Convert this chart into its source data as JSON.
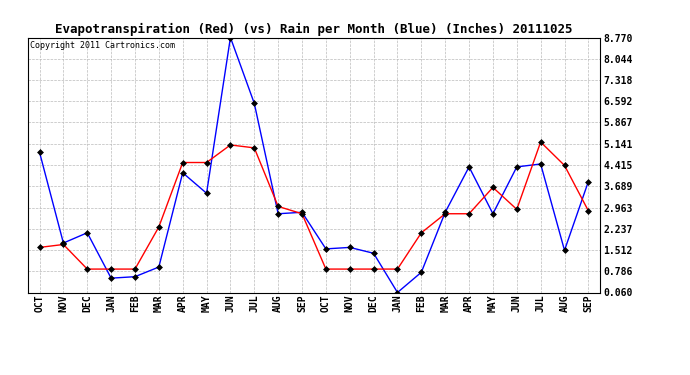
{
  "title": "Evapotranspiration (Red) (vs) Rain per Month (Blue) (Inches) 20111025",
  "copyright": "Copyright 2011 Cartronics.com",
  "months": [
    "OCT",
    "NOV",
    "DEC",
    "JAN",
    "FEB",
    "MAR",
    "APR",
    "MAY",
    "JUN",
    "JUL",
    "AUG",
    "SEP",
    "OCT",
    "NOV",
    "DEC",
    "JAN",
    "FEB",
    "MAR",
    "APR",
    "MAY",
    "JUN",
    "JUL",
    "AUG",
    "SEP"
  ],
  "rain_blue": [
    4.85,
    1.75,
    2.1,
    0.55,
    0.6,
    0.93,
    4.15,
    3.45,
    8.77,
    6.52,
    2.75,
    2.8,
    1.55,
    1.6,
    1.4,
    0.06,
    0.75,
    2.8,
    4.35,
    2.75,
    4.35,
    4.45,
    1.5,
    3.85
  ],
  "et_red": [
    1.6,
    1.7,
    0.86,
    0.86,
    0.86,
    2.3,
    4.5,
    4.5,
    5.1,
    5.0,
    3.0,
    2.75,
    0.86,
    0.86,
    0.86,
    0.86,
    2.1,
    2.75,
    2.75,
    3.65,
    2.9,
    5.2,
    4.4,
    2.85
  ],
  "yticks": [
    0.06,
    0.786,
    1.512,
    2.237,
    2.963,
    3.689,
    4.415,
    5.141,
    5.867,
    6.592,
    7.318,
    8.044,
    8.77
  ],
  "ymin": 0.06,
  "ymax": 8.77,
  "bg_color": "#ffffff",
  "grid_color": "#bbbbbb",
  "blue_color": "#0000ff",
  "red_color": "#ff0000",
  "title_fontsize": 9,
  "copyright_fontsize": 6,
  "tick_fontsize": 7,
  "linewidth": 1.0,
  "markersize": 3
}
